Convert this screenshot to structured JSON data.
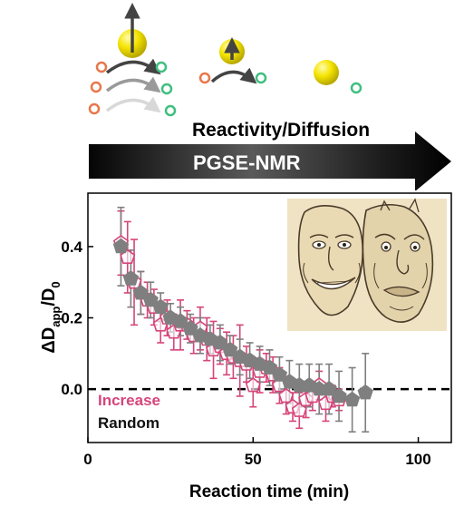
{
  "header": {
    "arrow_top_label": "Reactivity/Diffusion",
    "arrow_label": "PGSE-NMR",
    "colors": {
      "particle": "#f5e400",
      "reactant": "#e8774a",
      "product": "#3fbf7f",
      "arrow": "#333333"
    }
  },
  "inset_image": {
    "icon": "theatre-masks-drawing-icon"
  },
  "chart_data": {
    "type": "scatter",
    "title": "",
    "xlabel": "Reaction time (min)",
    "ylabel_main": "ΔD",
    "ylabel_sub": "app",
    "ylabel_after": "/D",
    "ylabel_sub2": "0",
    "xlim": [
      0,
      110
    ],
    "ylim": [
      -0.15,
      0.55
    ],
    "xticks": [
      "0",
      "50",
      "100"
    ],
    "xtick_values": [
      0,
      50,
      100
    ],
    "yticks": [
      "0.0",
      "0.2",
      "0.4"
    ],
    "ytick_values": [
      0.0,
      0.2,
      0.4
    ],
    "reference_line": {
      "y": 0.0,
      "style": "dashed"
    },
    "series": [
      {
        "name": "Increase",
        "color": "#d6457a",
        "marker": "pentagon-open",
        "points": [
          {
            "x": 10,
            "y": 0.41,
            "err": 0.09
          },
          {
            "x": 12,
            "y": 0.37,
            "err": 0.1
          },
          {
            "x": 14,
            "y": 0.3,
            "err": 0.12
          },
          {
            "x": 16,
            "y": 0.27,
            "err": 0.06
          },
          {
            "x": 18,
            "y": 0.25,
            "err": 0.05
          },
          {
            "x": 20,
            "y": 0.23,
            "err": 0.05
          },
          {
            "x": 22,
            "y": 0.18,
            "err": 0.05
          },
          {
            "x": 24,
            "y": 0.2,
            "err": 0.05
          },
          {
            "x": 26,
            "y": 0.16,
            "err": 0.05
          },
          {
            "x": 28,
            "y": 0.18,
            "err": 0.07
          },
          {
            "x": 30,
            "y": 0.18,
            "err": 0.04
          },
          {
            "x": 32,
            "y": 0.15,
            "err": 0.05
          },
          {
            "x": 34,
            "y": 0.17,
            "err": 0.06
          },
          {
            "x": 36,
            "y": 0.14,
            "err": 0.06
          },
          {
            "x": 38,
            "y": 0.11,
            "err": 0.08
          },
          {
            "x": 40,
            "y": 0.12,
            "err": 0.05
          },
          {
            "x": 42,
            "y": 0.1,
            "err": 0.06
          },
          {
            "x": 44,
            "y": 0.09,
            "err": 0.06
          },
          {
            "x": 46,
            "y": 0.08,
            "err": 0.1
          },
          {
            "x": 48,
            "y": 0.07,
            "err": 0.05
          },
          {
            "x": 50,
            "y": 0.01,
            "err": 0.06
          },
          {
            "x": 52,
            "y": 0.05,
            "err": 0.06
          },
          {
            "x": 54,
            "y": 0.06,
            "err": 0.04
          },
          {
            "x": 56,
            "y": 0.04,
            "err": 0.05
          },
          {
            "x": 58,
            "y": 0.01,
            "err": 0.05
          },
          {
            "x": 60,
            "y": -0.02,
            "err": 0.05
          },
          {
            "x": 62,
            "y": -0.05,
            "err": 0.04
          },
          {
            "x": 64,
            "y": -0.06,
            "err": 0.05
          },
          {
            "x": 66,
            "y": -0.03,
            "err": 0.05
          },
          {
            "x": 68,
            "y": -0.02,
            "err": 0.04
          },
          {
            "x": 70,
            "y": 0.01,
            "err": 0.04
          },
          {
            "x": 72,
            "y": -0.04,
            "err": 0.05
          },
          {
            "x": 74,
            "y": -0.02,
            "err": 0.03
          },
          {
            "x": 76,
            "y": -0.03,
            "err": 0.03
          }
        ]
      },
      {
        "name": "Random",
        "color": "#7f7f7f",
        "marker": "pentagon-filled",
        "points": [
          {
            "x": 10,
            "y": 0.4,
            "err": 0.11
          },
          {
            "x": 13,
            "y": 0.31,
            "err": 0.08
          },
          {
            "x": 16,
            "y": 0.27,
            "err": 0.06
          },
          {
            "x": 19,
            "y": 0.25,
            "err": 0.05
          },
          {
            "x": 22,
            "y": 0.23,
            "err": 0.04
          },
          {
            "x": 25,
            "y": 0.2,
            "err": 0.04
          },
          {
            "x": 28,
            "y": 0.19,
            "err": 0.04
          },
          {
            "x": 31,
            "y": 0.17,
            "err": 0.04
          },
          {
            "x": 34,
            "y": 0.15,
            "err": 0.05
          },
          {
            "x": 37,
            "y": 0.14,
            "err": 0.04
          },
          {
            "x": 40,
            "y": 0.13,
            "err": 0.05
          },
          {
            "x": 43,
            "y": 0.11,
            "err": 0.04
          },
          {
            "x": 46,
            "y": 0.09,
            "err": 0.05
          },
          {
            "x": 49,
            "y": 0.08,
            "err": 0.05
          },
          {
            "x": 52,
            "y": 0.07,
            "err": 0.05
          },
          {
            "x": 55,
            "y": 0.06,
            "err": 0.05
          },
          {
            "x": 58,
            "y": 0.04,
            "err": 0.05
          },
          {
            "x": 61,
            "y": 0.02,
            "err": 0.06
          },
          {
            "x": 64,
            "y": 0.01,
            "err": 0.06
          },
          {
            "x": 67,
            "y": 0.01,
            "err": 0.06
          },
          {
            "x": 70,
            "y": 0.0,
            "err": 0.07
          },
          {
            "x": 73,
            "y": 0.0,
            "err": 0.07
          },
          {
            "x": 76,
            "y": -0.02,
            "err": 0.07
          },
          {
            "x": 80,
            "y": -0.03,
            "err": 0.09
          },
          {
            "x": 84,
            "y": -0.01,
            "err": 0.11
          }
        ]
      }
    ]
  }
}
